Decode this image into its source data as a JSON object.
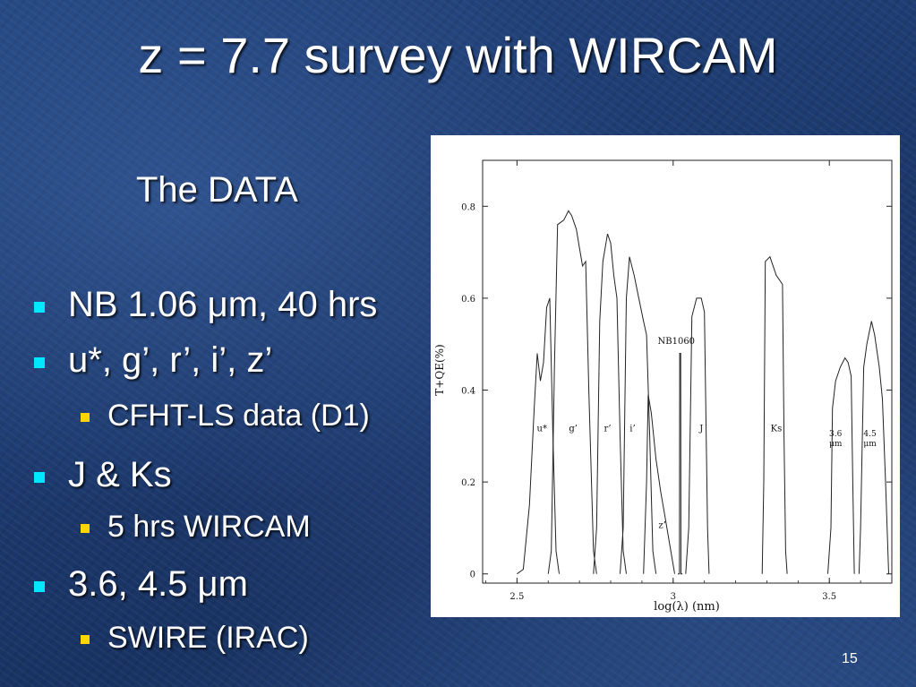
{
  "slide": {
    "title": "z = 7.7 survey with WIRCAM",
    "subtitle": "The DATA",
    "page_number": "15",
    "bullets": [
      {
        "level": 1,
        "text": "NB 1.06 μm, 40 hrs"
      },
      {
        "level": 1,
        "text": "u*, g’, r’, i’, z’"
      },
      {
        "level": 2,
        "text": "CFHT-LS data (D1)"
      },
      {
        "level": 1,
        "text": "J & Ks"
      },
      {
        "level": 2,
        "text": "5 hrs WIRCAM"
      },
      {
        "level": 1,
        "text": "3.6, 4.5 μm"
      },
      {
        "level": 2,
        "text": "SWIRE (IRAC)"
      }
    ]
  },
  "colors": {
    "background": "#1d3b70",
    "level1_marker": "#00e8ff",
    "level2_marker": "#ffd600"
  },
  "chart_data": {
    "type": "line",
    "title": "",
    "xlabel": "log(λ) (nm)",
    "ylabel": "T+QE(%)",
    "xlim": [
      2.39,
      3.7
    ],
    "ylim": [
      -0.02,
      0.9
    ],
    "xticks": [
      "2.5",
      "3",
      "3.5"
    ],
    "xtick_values": [
      2.5,
      3.0,
      3.5
    ],
    "yticks": [
      "0",
      "0.2",
      "0.4",
      "0.6",
      "0.8"
    ],
    "ytick_values": [
      0,
      0.2,
      0.4,
      0.6,
      0.8
    ],
    "series": [
      {
        "name": "u*",
        "label_at": [
          2.58,
          0.31
        ],
        "points": [
          [
            2.5,
            0
          ],
          [
            2.52,
            0.01
          ],
          [
            2.54,
            0.15
          ],
          [
            2.555,
            0.36
          ],
          [
            2.565,
            0.48
          ],
          [
            2.575,
            0.42
          ],
          [
            2.585,
            0.46
          ],
          [
            2.595,
            0.58
          ],
          [
            2.605,
            0.6
          ],
          [
            2.615,
            0.3
          ],
          [
            2.625,
            0.05
          ],
          [
            2.635,
            0
          ]
        ]
      },
      {
        "name": "g’",
        "label_at": [
          2.68,
          0.31
        ],
        "points": [
          [
            2.6,
            0
          ],
          [
            2.61,
            0.05
          ],
          [
            2.62,
            0.45
          ],
          [
            2.63,
            0.76
          ],
          [
            2.65,
            0.77
          ],
          [
            2.665,
            0.79
          ],
          [
            2.675,
            0.78
          ],
          [
            2.69,
            0.75
          ],
          [
            2.7,
            0.71
          ],
          [
            2.71,
            0.67
          ],
          [
            2.72,
            0.68
          ],
          [
            2.73,
            0.4
          ],
          [
            2.745,
            0.05
          ],
          [
            2.755,
            0
          ]
        ]
      },
      {
        "name": "r’",
        "label_at": [
          2.79,
          0.31
        ],
        "points": [
          [
            2.745,
            0
          ],
          [
            2.755,
            0.1
          ],
          [
            2.765,
            0.55
          ],
          [
            2.775,
            0.68
          ],
          [
            2.79,
            0.74
          ],
          [
            2.8,
            0.72
          ],
          [
            2.81,
            0.65
          ],
          [
            2.82,
            0.6
          ],
          [
            2.83,
            0.3
          ],
          [
            2.84,
            0.05
          ],
          [
            2.85,
            0
          ]
        ]
      },
      {
        "name": "i’",
        "label_at": [
          2.87,
          0.31
        ],
        "points": [
          [
            2.83,
            0
          ],
          [
            2.84,
            0.1
          ],
          [
            2.85,
            0.6
          ],
          [
            2.86,
            0.69
          ],
          [
            2.875,
            0.65
          ],
          [
            2.89,
            0.6
          ],
          [
            2.905,
            0.55
          ],
          [
            2.915,
            0.52
          ],
          [
            2.925,
            0.3
          ],
          [
            2.935,
            0.05
          ],
          [
            2.945,
            0
          ]
        ]
      },
      {
        "name": "z’",
        "label_at": [
          2.965,
          0.1
        ],
        "points": [
          [
            2.905,
            0
          ],
          [
            2.915,
            0.2
          ],
          [
            2.92,
            0.39
          ],
          [
            2.93,
            0.35
          ],
          [
            2.945,
            0.25
          ],
          [
            2.96,
            0.18
          ],
          [
            2.975,
            0.12
          ],
          [
            2.99,
            0.06
          ],
          [
            3.005,
            0
          ]
        ]
      },
      {
        "name": "NB1060",
        "label_at": [
          3.01,
          0.5
        ],
        "points": [
          [
            3.015,
            0
          ],
          [
            3.02,
            0
          ],
          [
            3.021,
            0.48
          ],
          [
            3.024,
            0.48
          ],
          [
            3.025,
            0
          ],
          [
            3.03,
            0
          ]
        ]
      },
      {
        "name": "J",
        "label_at": [
          3.09,
          0.31
        ],
        "points": [
          [
            3.04,
            0
          ],
          [
            3.05,
            0.1
          ],
          [
            3.06,
            0.56
          ],
          [
            3.075,
            0.6
          ],
          [
            3.09,
            0.6
          ],
          [
            3.1,
            0.57
          ],
          [
            3.11,
            0.1
          ],
          [
            3.115,
            0
          ]
        ]
      },
      {
        "name": "Ks",
        "label_at": [
          3.33,
          0.31
        ],
        "points": [
          [
            3.285,
            0
          ],
          [
            3.29,
            0.2
          ],
          [
            3.295,
            0.68
          ],
          [
            3.31,
            0.69
          ],
          [
            3.33,
            0.65
          ],
          [
            3.35,
            0.63
          ],
          [
            3.355,
            0.3
          ],
          [
            3.36,
            0.05
          ],
          [
            3.365,
            0
          ]
        ]
      },
      {
        "name": "3.6 μm",
        "label_at": [
          3.52,
          0.3
        ],
        "points": [
          [
            3.495,
            0
          ],
          [
            3.505,
            0.1
          ],
          [
            3.51,
            0.36
          ],
          [
            3.52,
            0.42
          ],
          [
            3.535,
            0.45
          ],
          [
            3.55,
            0.47
          ],
          [
            3.56,
            0.46
          ],
          [
            3.57,
            0.43
          ],
          [
            3.575,
            0.2
          ],
          [
            3.58,
            0
          ]
        ]
      },
      {
        "name": "4.5 μm",
        "label_at": [
          3.63,
          0.3
        ],
        "points": [
          [
            3.595,
            0
          ],
          [
            3.6,
            0.1
          ],
          [
            3.61,
            0.45
          ],
          [
            3.62,
            0.5
          ],
          [
            3.635,
            0.55
          ],
          [
            3.645,
            0.52
          ],
          [
            3.66,
            0.45
          ],
          [
            3.67,
            0.38
          ],
          [
            3.68,
            0.2
          ],
          [
            3.69,
            0
          ]
        ]
      }
    ]
  }
}
